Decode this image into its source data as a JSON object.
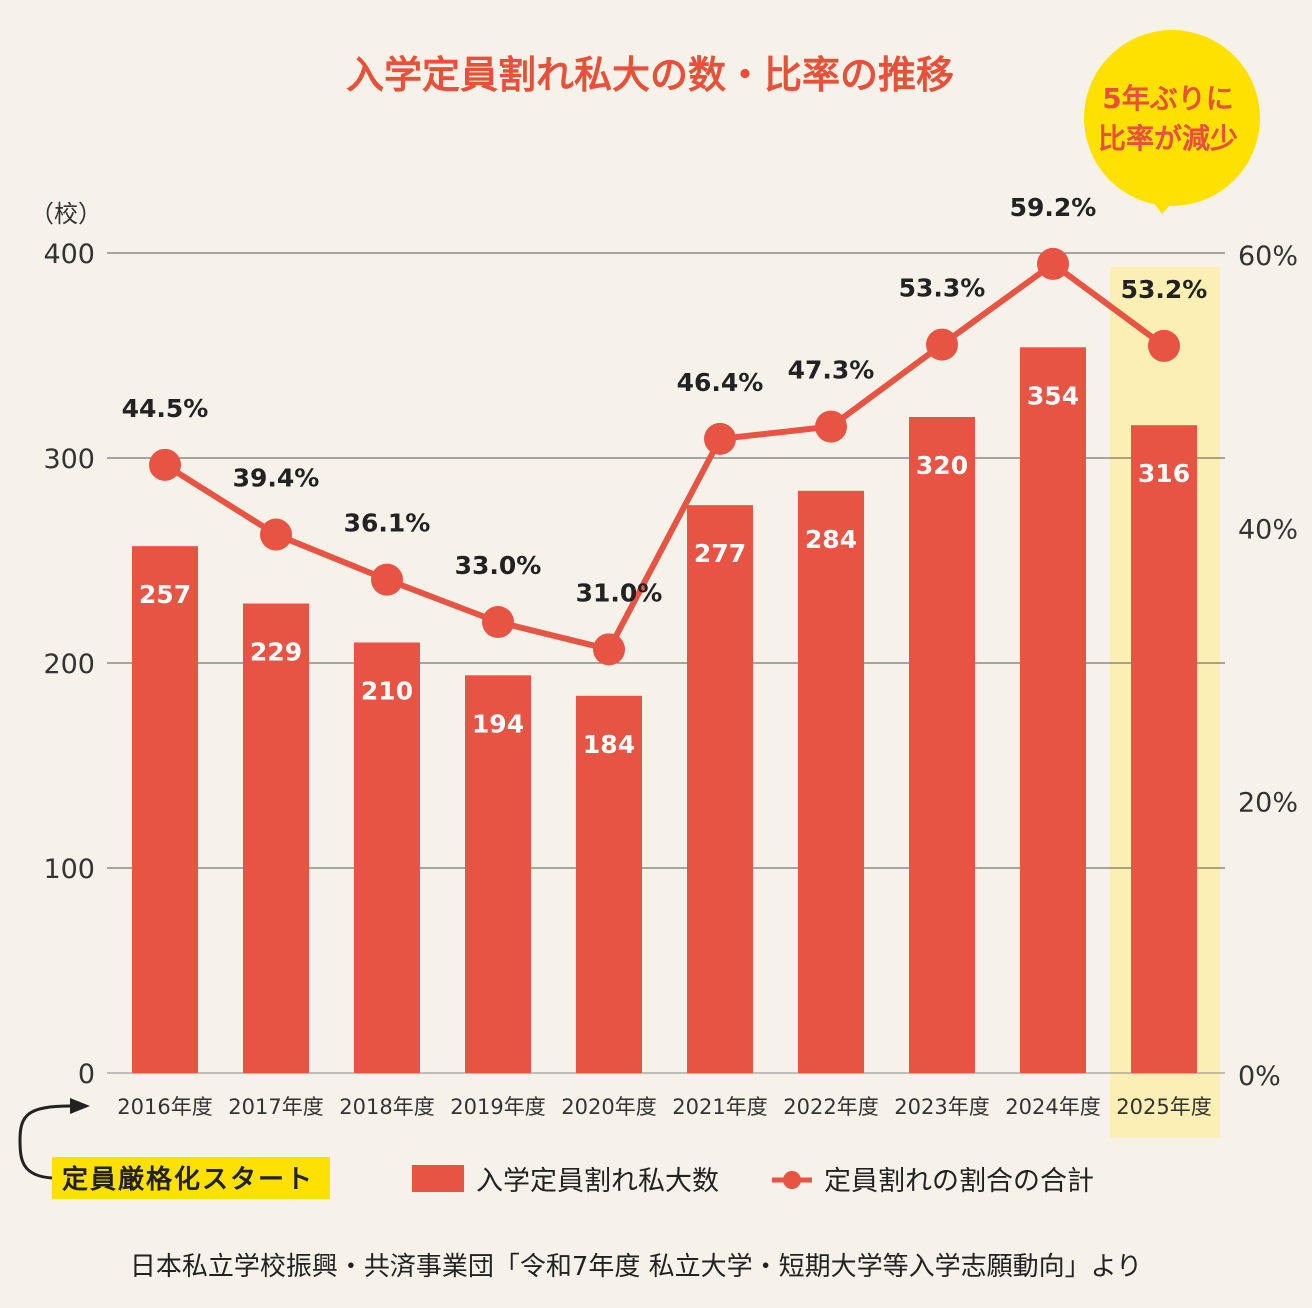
{
  "chart_data": {
    "type": "bar+line",
    "title": "入学定員割れ私大の数・比率の推移",
    "ylabel_left": "（校）",
    "categories": [
      "2016年度",
      "2017年度",
      "2018年度",
      "2019年度",
      "2020年度",
      "2021年度",
      "2022年度",
      "2023年度",
      "2024年度",
      "2025年度"
    ],
    "series": [
      {
        "name": "入学定員割れ私大数",
        "type": "bar",
        "axis": "left",
        "values": [
          257,
          229,
          210,
          194,
          184,
          277,
          284,
          320,
          354,
          316
        ],
        "labels": [
          "257",
          "229",
          "210",
          "194",
          "184",
          "277",
          "284",
          "320",
          "354",
          "316"
        ]
      },
      {
        "name": "定員割れの割合の合計",
        "type": "line",
        "axis": "right",
        "values": [
          44.5,
          39.4,
          36.1,
          33.0,
          31.0,
          46.4,
          47.3,
          53.3,
          59.2,
          53.2
        ],
        "labels": [
          "44.5%",
          "39.4%",
          "36.1%",
          "33.0%",
          "31.0%",
          "46.4%",
          "47.3%",
          "53.3%",
          "59.2%",
          "53.2%"
        ]
      }
    ],
    "ylim_left": [
      0,
      400
    ],
    "yticks_left": [
      "0",
      "100",
      "200",
      "300",
      "400"
    ],
    "ylim_right": [
      0,
      60
    ],
    "yticks_right": [
      "0%",
      "20%",
      "40%",
      "60%"
    ],
    "grid": true,
    "legend_placement": "bottom",
    "highlight_category": "2025年度",
    "colors": {
      "bar": "#e85443",
      "line": "#e85443",
      "title": "#e8503a",
      "highlight": "#fcefb4",
      "callout": "#ffe100",
      "annotation": "#ffe100"
    }
  },
  "callout": {
    "line1": "5年ぶりに",
    "line2": "比率が減少"
  },
  "annotation": "定員厳格化スタート",
  "source": "日本私立学校振興・共済事業団「令和7年度 私立大学・短期大学等入学志願動向」より"
}
